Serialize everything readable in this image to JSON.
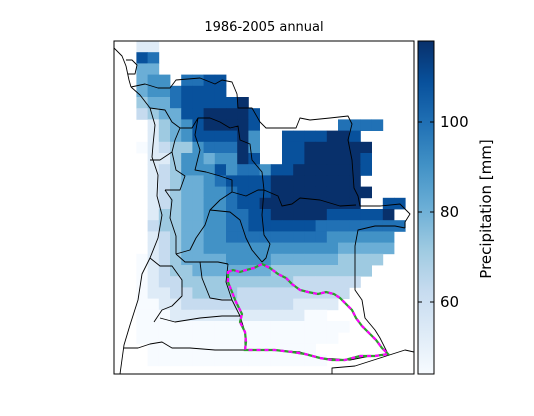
{
  "figure": {
    "title": "1986-2005 annual"
  },
  "colorbar": {
    "label": "Precipitation [mm]",
    "ticks": [
      {
        "value": 60,
        "label": "60"
      },
      {
        "value": 80,
        "label": "80"
      },
      {
        "value": 100,
        "label": "100"
      }
    ],
    "range": [
      44,
      118
    ],
    "colormap": "Blues",
    "colors": [
      "#f7fbff",
      "#deebf7",
      "#c6dbef",
      "#9ecae1",
      "#6baed6",
      "#4292c6",
      "#2171b5",
      "#08519c",
      "#08306b"
    ]
  },
  "overlay": {
    "outline_colors": [
      "#ff00ff",
      "#2ca02c"
    ]
  }
}
